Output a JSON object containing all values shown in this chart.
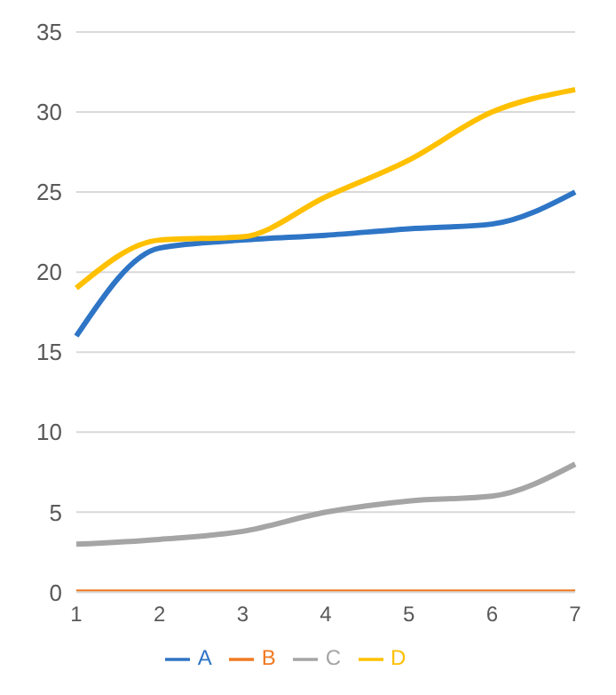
{
  "chart_data": {
    "type": "line",
    "categories": [
      "1",
      "2",
      "3",
      "4",
      "5",
      "6",
      "7"
    ],
    "series": [
      {
        "name": "A",
        "color": "#2e75c6",
        "values": [
          16,
          21.5,
          22,
          22.3,
          22.7,
          23,
          25
        ]
      },
      {
        "name": "B",
        "color": "#f07a22",
        "values": [
          0,
          0,
          0,
          0,
          0,
          0,
          0
        ]
      },
      {
        "name": "C",
        "color": "#a5a5a5",
        "values": [
          3,
          3.3,
          3.8,
          5,
          5.7,
          6,
          8
        ]
      },
      {
        "name": "D",
        "color": "#ffc000",
        "values": [
          19,
          22,
          22.2,
          24.7,
          27,
          30,
          31.4
        ]
      }
    ],
    "ylim": [
      0,
      35
    ],
    "yticks": [
      0,
      5,
      10,
      15,
      20,
      25,
      30,
      35
    ],
    "grid": "y",
    "legend": "bottom",
    "marker": "none",
    "line_style": "solid"
  }
}
